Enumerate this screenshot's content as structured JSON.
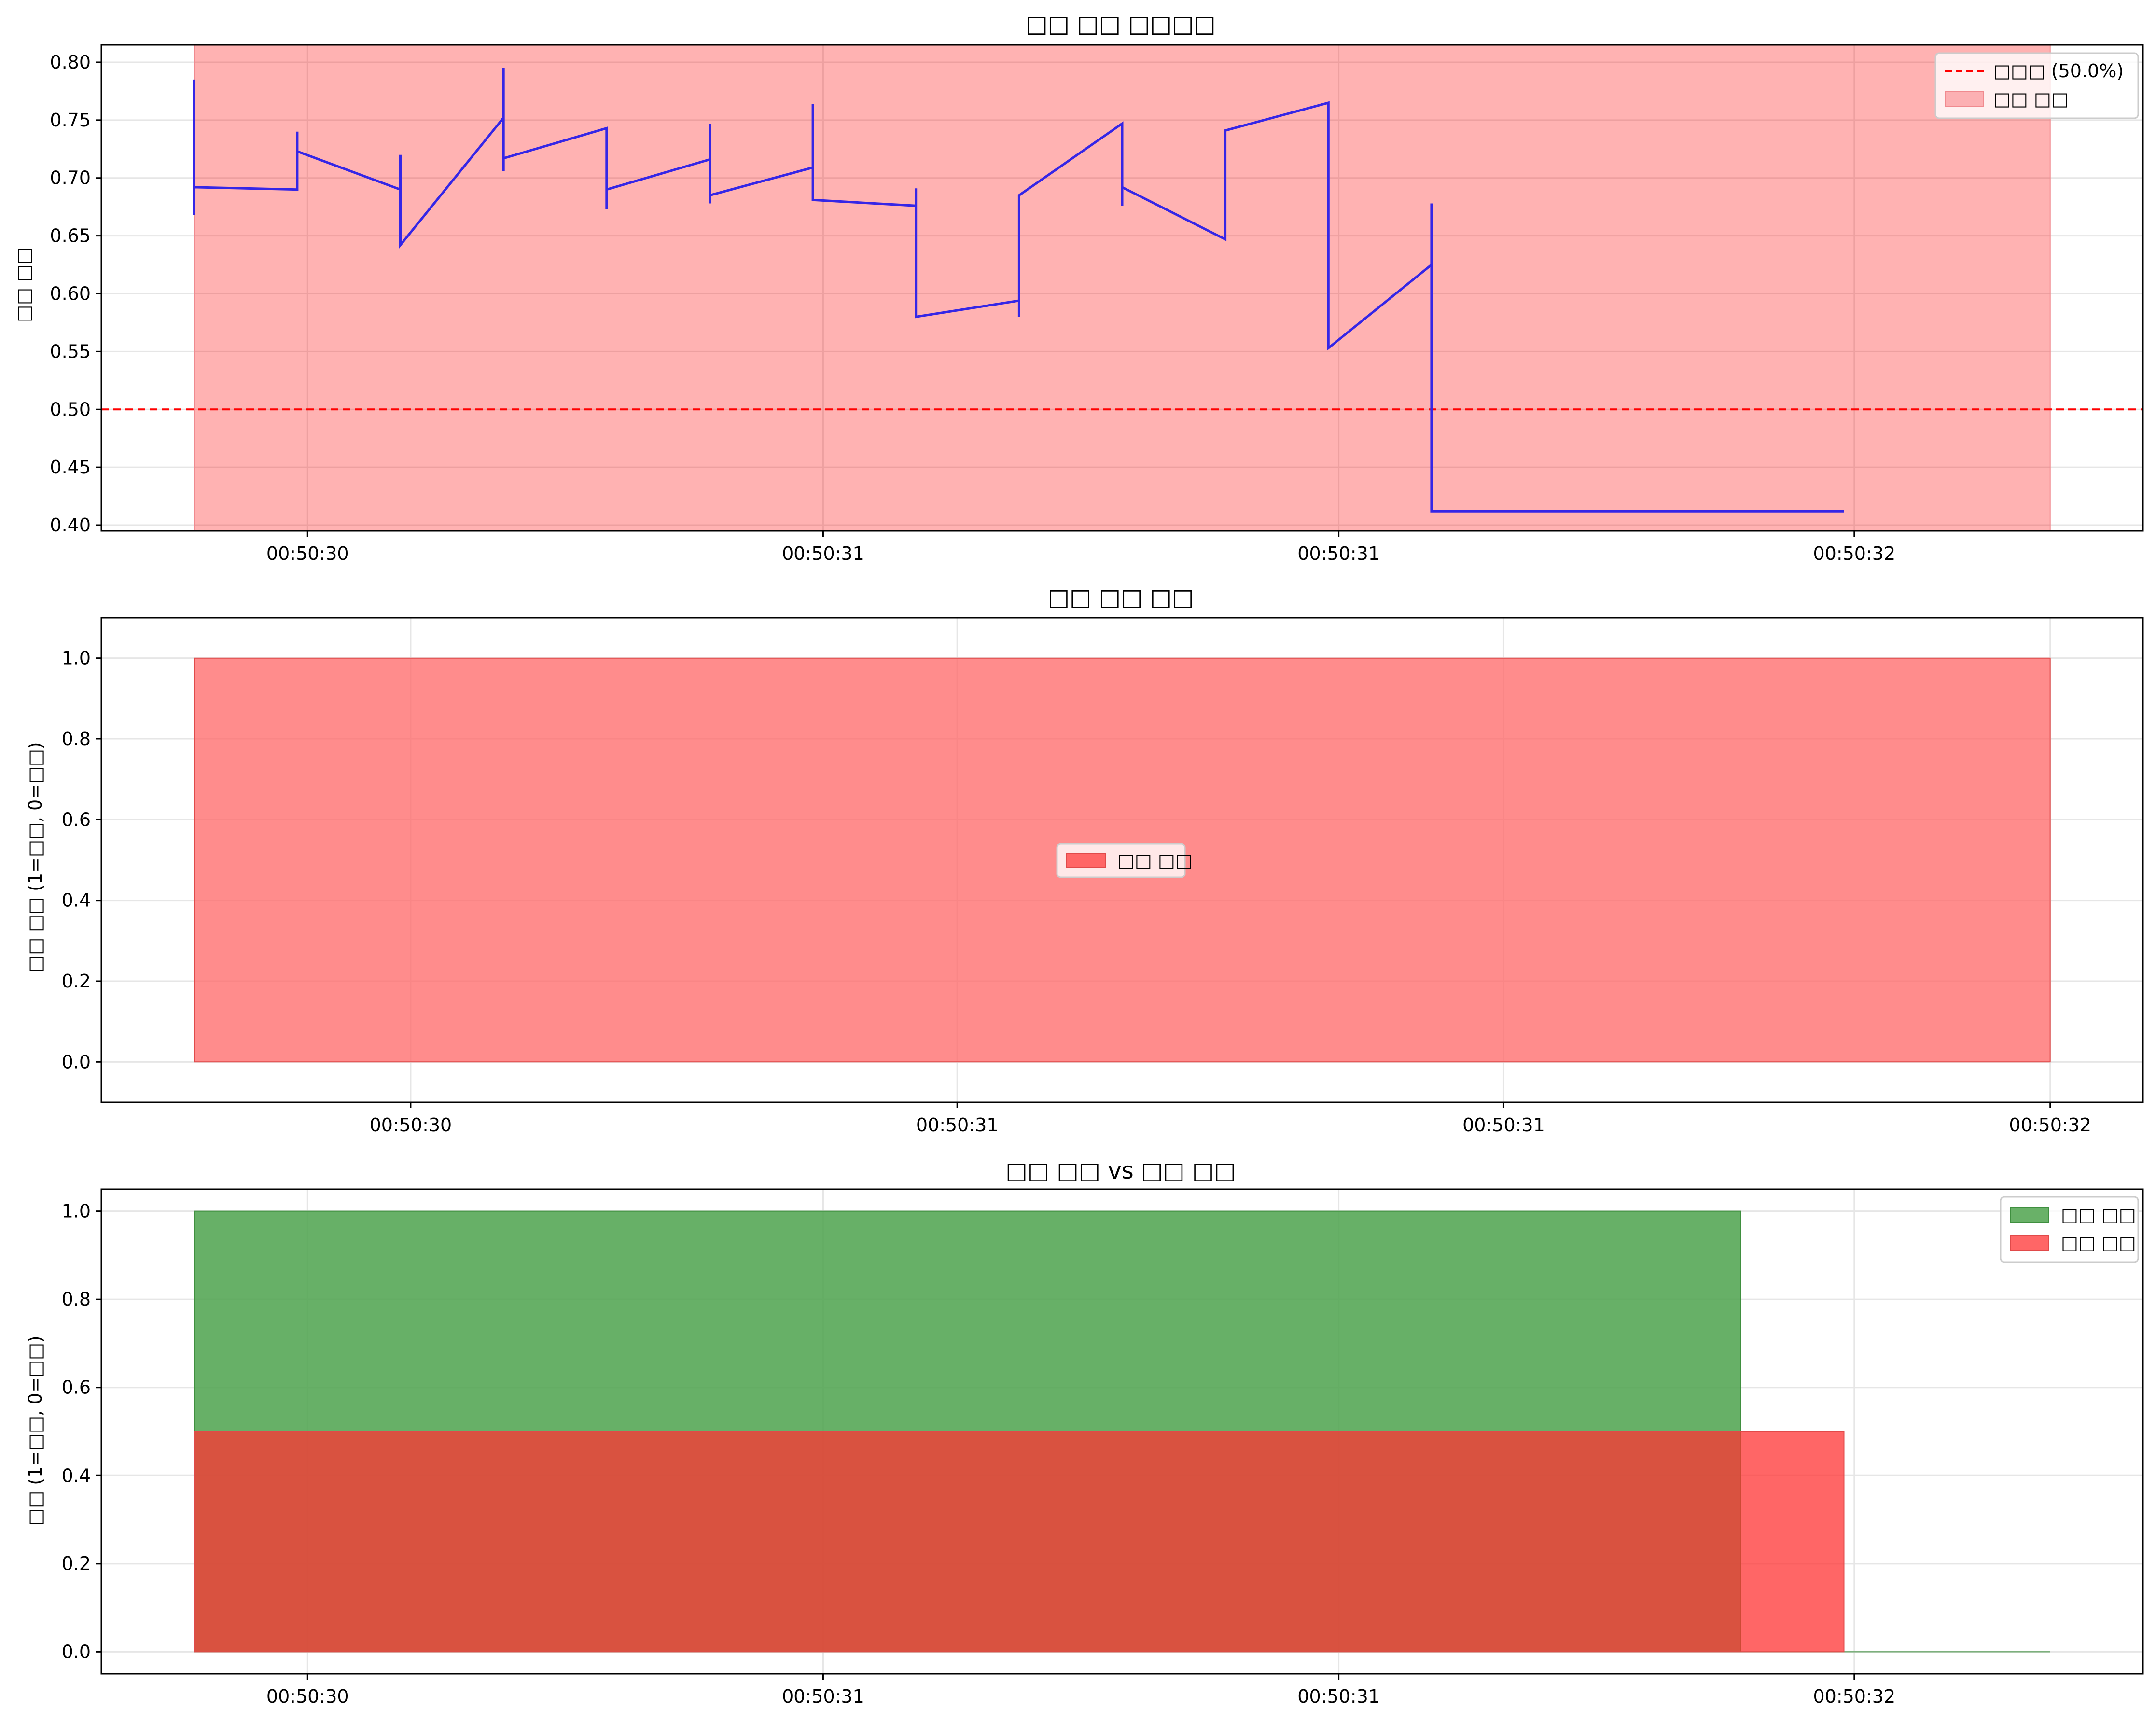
{
  "chart_data": [
    {
      "type": "line",
      "title": "□□ □□ □□□□",
      "xlabel": "",
      "ylabel": "□□ □□",
      "ylim": [
        0.395,
        0.815
      ],
      "yticks": [
        0.4,
        0.45,
        0.5,
        0.55,
        0.6,
        0.65,
        0.7,
        0.75,
        0.8
      ],
      "xlim": [
        0,
        19.8
      ],
      "xticks": [
        {
          "x": 2,
          "label": "00:50:30"
        },
        {
          "x": 7,
          "label": "00:50:31"
        },
        {
          "x": 12,
          "label": "00:50:31"
        },
        {
          "x": 17,
          "label": "00:50:32"
        }
      ],
      "grid": true,
      "legend_position": "top-right",
      "legend": [
        {
          "label": "□□□ (50.0%)",
          "kind": "dashed-line",
          "color": "#ff0000"
        },
        {
          "label": "□□ □□",
          "kind": "patch",
          "color": "#fcb0b3"
        }
      ],
      "threshold": 0.5,
      "shaded_region": {
        "x_start": 0.9,
        "x_end": 18.9,
        "y_start": 0.395,
        "y_end": 0.815
      },
      "series": [
        {
          "color": "#3526e6",
          "x": [
            0.9,
            0.9,
            0.9,
            1.9,
            1.9,
            1.9,
            1.9,
            2.9,
            2.9,
            2.9,
            2.9,
            3.9,
            3.9,
            3.9,
            3.9,
            4.9,
            4.9,
            4.9,
            4.9,
            5.9,
            5.9,
            5.9,
            5.9,
            6.9,
            6.9,
            6.9,
            6.9,
            7.9,
            7.9,
            7.9,
            7.9,
            8.9,
            8.9,
            8.9,
            8.9,
            9.9,
            9.9,
            9.9,
            9.9,
            10.9,
            10.9,
            10.9,
            10.9,
            11.9,
            11.9,
            11.9,
            11.9,
            12.9,
            12.9,
            12.9,
            12.9,
            13.9,
            13.9,
            13.9,
            13.9,
            14.9,
            14.9,
            14.9,
            14.9,
            15.9,
            15.9,
            15.9,
            15.9,
            16.9,
            16.9,
            16.9,
            16.9,
            17.9
          ],
          "y": [
            0.785,
            0.668,
            0.692,
            0.69,
            0.74,
            0.7,
            0.723,
            0.69,
            0.72,
            0.7,
            0.642,
            0.752,
            0.795,
            0.706,
            0.717,
            0.743,
            0.673,
            0.705,
            0.69,
            0.716,
            0.747,
            0.678,
            0.685,
            0.709,
            0.764,
            0.7,
            0.681,
            0.676,
            0.691,
            0.681,
            0.58,
            0.594,
            0.58,
            0.67,
            0.685,
            0.747,
            0.676,
            0.676,
            0.692,
            0.647,
            0.662,
            0.653,
            0.741,
            0.765,
            0.677,
            0.656,
            0.553,
            0.625,
            0.678,
            0.412,
            0.412,
            0.412,
            0.412,
            0.412,
            0.412,
            0.412,
            0.412,
            0.412,
            0.412,
            0.412,
            0.412,
            0.412,
            0.412,
            0.412,
            0.412,
            0.412,
            0.412,
            0.412
          ]
        }
      ]
    },
    {
      "type": "area",
      "title": "□□ □□ □□",
      "xlabel": "",
      "ylabel": "□□ □□ (1=□□, 0=□□)",
      "ylim": [
        -0.1,
        1.1
      ],
      "yticks": [
        0.0,
        0.2,
        0.4,
        0.6,
        0.8,
        1.0
      ],
      "xlim": [
        0,
        19.8
      ],
      "xticks": [
        {
          "x": 3,
          "label": "00:50:30"
        },
        {
          "x": 8.3,
          "label": "00:50:31"
        },
        {
          "x": 13.6,
          "label": "00:50:31"
        },
        {
          "x": 18.9,
          "label": "00:50:32"
        }
      ],
      "grid": true,
      "legend_position": "center",
      "legend": [
        {
          "label": "□□ □□",
          "kind": "patch",
          "color": "#ff6666"
        }
      ],
      "series": [
        {
          "name": "□□ □□",
          "color": "#ff6666",
          "x": [
            0.9,
            18.9
          ],
          "values": [
            1,
            1
          ]
        }
      ]
    },
    {
      "type": "area",
      "title": "□□ □□ vs □□ □□",
      "xlabel": "",
      "ylabel": "□□ (1=□□, 0=□□)",
      "ylim": [
        -0.05,
        1.05
      ],
      "yticks": [
        0.0,
        0.2,
        0.4,
        0.6,
        0.8,
        1.0
      ],
      "xlim": [
        0,
        19.8
      ],
      "xticks": [
        {
          "x": 2,
          "label": "00:50:30"
        },
        {
          "x": 7,
          "label": "00:50:31"
        },
        {
          "x": 12,
          "label": "00:50:31"
        },
        {
          "x": 17,
          "label": "00:50:32"
        }
      ],
      "grid": true,
      "legend_position": "top-right",
      "legend": [
        {
          "label": "□□ □□",
          "kind": "patch",
          "color": "#69b168"
        },
        {
          "label": "□□ □□",
          "kind": "patch",
          "color": "#ff6666"
        }
      ],
      "series": [
        {
          "name": "□□ □□",
          "color": "#4ca24c",
          "x": [
            0.9,
            15.9,
            15.9,
            18.9
          ],
          "values": [
            1,
            1,
            0,
            0
          ]
        },
        {
          "name": "□□ □□",
          "color": "#ff3333",
          "x": [
            0.9,
            16.9
          ],
          "values": [
            0.5,
            0.5
          ]
        }
      ]
    }
  ]
}
